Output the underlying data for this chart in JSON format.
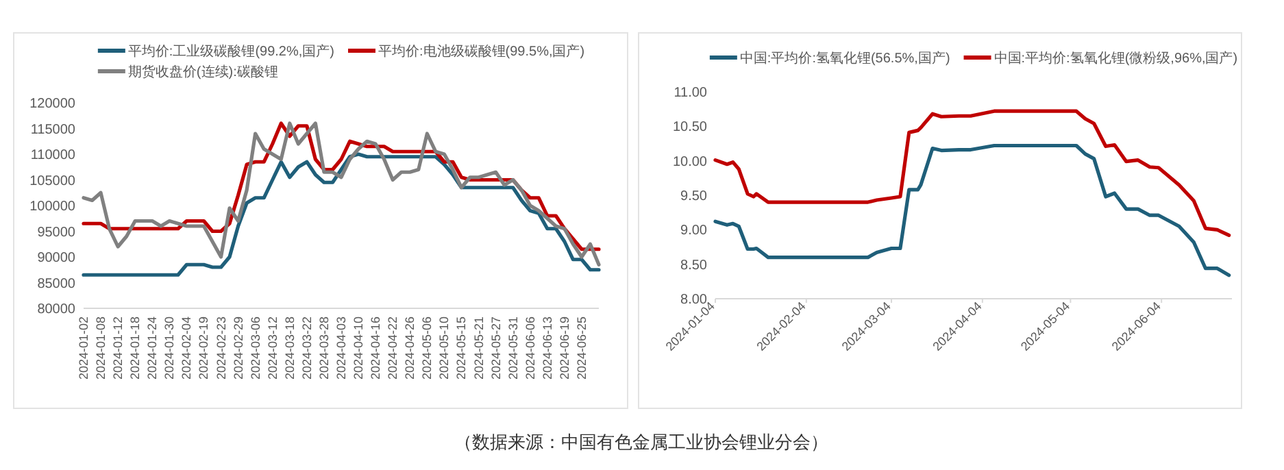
{
  "chart_data": [
    {
      "type": "line",
      "legend": "top",
      "ylim": [
        80000,
        120000
      ],
      "yticks": [
        80000,
        85000,
        90000,
        95000,
        100000,
        105000,
        110000,
        115000,
        120000
      ],
      "categories": [
        "2024-01-02",
        null,
        "2024-01-08",
        null,
        "2024-01-12",
        null,
        "2024-01-18",
        null,
        "2024-01-24",
        null,
        "2024-01-30",
        null,
        "2024-02-04",
        null,
        "2024-02-19",
        null,
        "2024-02-23",
        null,
        "2024-02-29",
        null,
        "2024-03-06",
        null,
        "2024-03-12",
        null,
        "2024-03-18",
        null,
        "2024-03-22",
        null,
        "2024-03-28",
        null,
        "2024-04-03",
        null,
        "2024-04-10",
        null,
        "2024-04-16",
        null,
        "2024-04-22",
        null,
        "2024-04-26",
        null,
        "2024-05-06",
        null,
        "2024-05-10",
        null,
        "2024-05-15",
        null,
        "2024-05-21",
        null,
        "2024-05-27",
        null,
        "2024-05-31",
        null,
        "2024-06-06",
        null,
        "2024-06-13",
        null,
        "2024-06-19",
        null,
        "2024-06-25",
        null,
        null
      ],
      "series": [
        {
          "name": "平均价:工业级碳酸锂(99.2%,国产)",
          "color": "#1f5f7a",
          "values": [
            86500,
            86500,
            86500,
            86500,
            86500,
            86500,
            86500,
            86500,
            86500,
            86500,
            86500,
            86500,
            88500,
            88500,
            88500,
            88000,
            88000,
            90000,
            96000,
            100500,
            101500,
            101500,
            105000,
            108500,
            105500,
            107500,
            108500,
            106000,
            104500,
            104500,
            107000,
            109500,
            110000,
            109500,
            109500,
            109500,
            109500,
            109500,
            109500,
            109500,
            109500,
            109500,
            108000,
            106000,
            103500,
            103500,
            103500,
            103500,
            103500,
            103500,
            103500,
            101000,
            99000,
            98500,
            95500,
            95500,
            93000,
            89500,
            89500,
            87500,
            87500
          ]
        },
        {
          "name": "平均价:电池级碳酸锂(99.5%,国产)",
          "color": "#c00000",
          "values": [
            96500,
            96500,
            96500,
            95500,
            95500,
            95500,
            95500,
            95500,
            95500,
            95500,
            95500,
            95500,
            97000,
            97000,
            97000,
            95000,
            95000,
            96500,
            102000,
            108000,
            108500,
            108500,
            112000,
            116000,
            113500,
            115500,
            115500,
            109000,
            107000,
            107000,
            109000,
            112500,
            112000,
            111500,
            111500,
            111500,
            110500,
            110500,
            110500,
            110500,
            110500,
            110500,
            108500,
            108500,
            105500,
            105000,
            105000,
            105000,
            105000,
            105000,
            105000,
            103000,
            101500,
            101500,
            98000,
            98000,
            95500,
            93500,
            91500,
            91500,
            91500
          ]
        },
        {
          "name": "期货收盘价(连续):碳酸锂",
          "color": "#808080",
          "values": [
            101500,
            101000,
            102500,
            95500,
            92000,
            94000,
            97000,
            97000,
            97000,
            96000,
            97000,
            96500,
            96000,
            96000,
            96000,
            93000,
            90000,
            99500,
            97000,
            103000,
            114000,
            111000,
            110000,
            109000,
            116000,
            112000,
            114000,
            116000,
            106500,
            106500,
            105500,
            109000,
            111000,
            112500,
            112000,
            109000,
            105000,
            106500,
            106500,
            107000,
            114000,
            110500,
            110000,
            107000,
            103500,
            105500,
            105500,
            106000,
            106500,
            104000,
            105000,
            103000,
            100000,
            99000,
            97500,
            96000,
            95500,
            92500,
            90000,
            92500,
            88500
          ]
        }
      ],
      "annotations": [
        "（数据来源：中国有色金属工业协会锂业分会）"
      ]
    },
    {
      "type": "line",
      "legend": "top",
      "ylim": [
        8,
        11
      ],
      "yticks": [
        {
          "value": 8,
          "label": "8.00"
        },
        {
          "value": 8.5,
          "label": "8.50"
        },
        {
          "value": 9,
          "label": "9.00"
        },
        {
          "value": 9.5,
          "label": "9.50"
        },
        {
          "value": 10,
          "label": "10.00"
        },
        {
          "value": 10.5,
          "label": "10.50"
        },
        {
          "value": 11,
          "label": "11.00"
        }
      ],
      "xlim": [
        "2024-01-04",
        "2024-06-28"
      ],
      "xticks": [
        "2024-01-04",
        "2024-02-04",
        "2024-03-04",
        "2024-04-04",
        "2024-05-04",
        "2024-06-04"
      ],
      "x": [
        "2024-01-04",
        "2024-01-08",
        "2024-01-10",
        "2024-01-12",
        "2024-01-15",
        "2024-01-17",
        "2024-01-18",
        "2024-01-22",
        "2024-02-25",
        "2024-02-28",
        "2024-03-04",
        "2024-03-07",
        "2024-03-10",
        "2024-03-13",
        "2024-03-14",
        "2024-03-18",
        "2024-03-21",
        "2024-03-27",
        "2024-03-31",
        "2024-04-08",
        "2024-05-06",
        "2024-05-09",
        "2024-05-12",
        "2024-05-16",
        "2024-05-19",
        "2024-05-23",
        "2024-05-27",
        "2024-05-31",
        "2024-06-03",
        "2024-06-10",
        "2024-06-15",
        "2024-06-19",
        "2024-06-23",
        "2024-06-27"
      ],
      "series": [
        {
          "name": "中国:平均价:氢氧化锂(56.5%,国产)",
          "color": "#1f5f7a",
          "values": [
            9.12,
            9.07,
            9.09,
            9.05,
            8.72,
            8.72,
            8.73,
            8.6,
            8.6,
            8.67,
            8.73,
            8.73,
            9.58,
            9.58,
            9.65,
            10.18,
            10.15,
            10.16,
            10.16,
            10.22,
            10.22,
            10.1,
            10.03,
            9.48,
            9.53,
            9.3,
            9.3,
            9.21,
            9.21,
            9.05,
            8.82,
            8.44,
            8.44,
            8.34
          ]
        },
        {
          "name": "中国:平均价:氢氧化锂(微粉级,96%,国产)",
          "color": "#c00000",
          "values": [
            10.01,
            9.95,
            9.98,
            9.88,
            9.52,
            9.48,
            9.52,
            9.4,
            9.4,
            9.43,
            9.46,
            9.48,
            10.41,
            10.44,
            10.48,
            10.68,
            10.64,
            10.65,
            10.65,
            10.72,
            10.72,
            10.61,
            10.54,
            10.21,
            10.23,
            9.99,
            10.01,
            9.91,
            9.9,
            9.65,
            9.42,
            9.02,
            9.0,
            8.92
          ]
        }
      ]
    }
  ]
}
